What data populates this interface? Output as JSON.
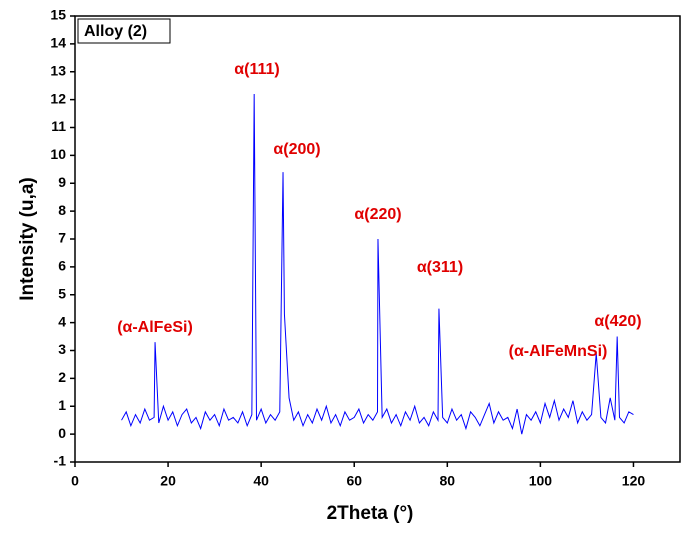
{
  "chart_data": {
    "type": "line",
    "legend_label": "Alloy (2)",
    "x_label": "2Theta  (°)",
    "y_label": "Intensity  (u,a)",
    "annotations": [
      "α(111)",
      "α(200)",
      "α(220)",
      "α(311)",
      "(α-AlFeSi)",
      "(α-AlFeMnSi)",
      "α(420)"
    ],
    "x": [
      10,
      11,
      12,
      13,
      14,
      15,
      16,
      17,
      17.2,
      18,
      19,
      20,
      21,
      22,
      23,
      24,
      25,
      26,
      27,
      28,
      29,
      30,
      31,
      32,
      33,
      34,
      35,
      36,
      37,
      38,
      38.5,
      39,
      40,
      41,
      42,
      43,
      44,
      44.7,
      45,
      46,
      47,
      48,
      49,
      50,
      51,
      52,
      53,
      54,
      55,
      56,
      57,
      58,
      59,
      60,
      61,
      62,
      63,
      64,
      65,
      65.1,
      66,
      67,
      68,
      69,
      70,
      71,
      72,
      73,
      74,
      75,
      76,
      77,
      78,
      78.2,
      79,
      80,
      81,
      82,
      83,
      84,
      85,
      86,
      87,
      88,
      89,
      90,
      91,
      92,
      93,
      94,
      95,
      96,
      97,
      98,
      99,
      100,
      101,
      102,
      103,
      104,
      105,
      106,
      107,
      108,
      109,
      110,
      111,
      112,
      113,
      114,
      115,
      116,
      116.5,
      117,
      118,
      119,
      120
    ],
    "series": [
      {
        "name": "Alloy (2)",
        "color": "#0000ff",
        "values": [
          0.5,
          0.8,
          0.3,
          0.7,
          0.4,
          0.9,
          0.5,
          0.6,
          3.3,
          0.4,
          1.0,
          0.5,
          0.8,
          0.3,
          0.7,
          0.9,
          0.4,
          0.6,
          0.2,
          0.8,
          0.5,
          0.7,
          0.3,
          0.9,
          0.5,
          0.6,
          0.4,
          0.8,
          0.3,
          0.7,
          12.2,
          0.5,
          0.9,
          0.4,
          0.7,
          0.5,
          0.8,
          9.4,
          4.3,
          1.3,
          0.5,
          0.8,
          0.3,
          0.7,
          0.4,
          0.9,
          0.5,
          1.0,
          0.4,
          0.7,
          0.3,
          0.8,
          0.5,
          0.6,
          0.9,
          0.4,
          0.7,
          0.5,
          0.8,
          7.0,
          0.6,
          0.9,
          0.4,
          0.7,
          0.3,
          0.8,
          0.5,
          1.0,
          0.4,
          0.6,
          0.3,
          0.8,
          0.5,
          4.5,
          0.6,
          0.4,
          0.9,
          0.5,
          0.7,
          0.2,
          0.8,
          0.6,
          0.3,
          0.7,
          1.1,
          0.4,
          0.8,
          0.5,
          0.6,
          0.2,
          0.9,
          0.0,
          0.7,
          0.5,
          0.8,
          0.4,
          1.1,
          0.6,
          1.2,
          0.5,
          0.9,
          0.6,
          1.2,
          0.4,
          0.8,
          0.5,
          0.7,
          2.9,
          0.6,
          0.4,
          1.3,
          0.5,
          3.5,
          0.6,
          0.4,
          0.8,
          0.7
        ]
      }
    ],
    "xlim": [
      0,
      130
    ],
    "xticks": [
      0,
      20,
      40,
      60,
      80,
      100,
      120
    ],
    "ylim": [
      -1,
      15
    ],
    "yticks": [
      -1,
      0,
      1,
      2,
      3,
      4,
      5,
      6,
      7,
      8,
      9,
      10,
      11,
      12,
      13,
      14,
      15
    ]
  }
}
